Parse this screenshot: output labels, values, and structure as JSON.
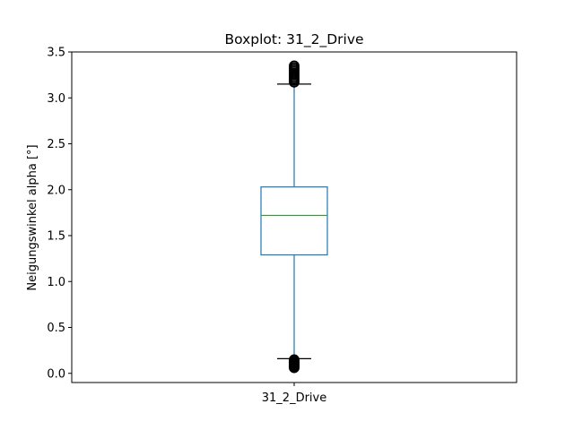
{
  "chart_data": {
    "type": "boxplot",
    "title": "Boxplot: 31_2_Drive",
    "xlabel": "",
    "ylabel": "Neigungswinkel alpha [°]",
    "categories": [
      "31_2_Drive"
    ],
    "ylim": [
      -0.1,
      3.5
    ],
    "yticks": [
      0.0,
      0.5,
      1.0,
      1.5,
      2.0,
      2.5,
      3.0,
      3.5
    ],
    "ytick_labels": [
      "0.0",
      "0.5",
      "1.0",
      "1.5",
      "2.0",
      "2.5",
      "3.0",
      "3.5"
    ],
    "grid": false,
    "boxes": [
      {
        "name": "31_2_Drive",
        "whisker_low": 0.16,
        "q1": 1.29,
        "median": 1.72,
        "q3": 2.03,
        "whisker_high": 3.15,
        "outliers_low": [
          0.06,
          0.07,
          0.08,
          0.09,
          0.1,
          0.11,
          0.12,
          0.13,
          0.14,
          0.15
        ],
        "outliers_high": [
          3.17,
          3.19,
          3.21,
          3.23,
          3.25,
          3.27,
          3.29,
          3.31,
          3.33,
          3.35
        ]
      }
    ],
    "colors": {
      "box": "#1f77b4",
      "median": "#2ca02c",
      "caps": "#000000",
      "outliers": "#000000"
    }
  }
}
